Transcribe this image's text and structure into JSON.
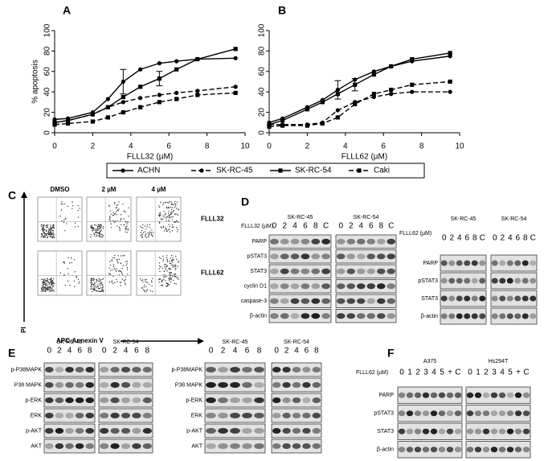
{
  "panel_labels": [
    "A",
    "B",
    "C",
    "D",
    "E",
    "F"
  ],
  "chart_data": [
    {
      "type": "line",
      "ylabel": "% apoptosis",
      "xlabel": "FLLL32 (µM)",
      "x": [
        0,
        0.7,
        2,
        2.8,
        3.6,
        4.5,
        5.5,
        6.4,
        7.5,
        9.5
      ],
      "xlim": [
        0,
        10
      ],
      "xticks": [
        0,
        2,
        4,
        6,
        8,
        10
      ],
      "ylim": [
        0,
        100
      ],
      "yticks": [
        0,
        20,
        40,
        60,
        80,
        100
      ],
      "series": [
        {
          "name": "ACHN",
          "color": "#000000",
          "dash": false,
          "marker": "circle",
          "values": [
            13,
            14,
            20,
            33,
            50,
            62,
            68,
            70,
            72,
            73
          ],
          "errors": [
            null,
            null,
            null,
            null,
            12,
            null,
            null,
            null,
            null,
            null
          ]
        },
        {
          "name": "SK-RC-45",
          "color": "#000000",
          "dash": true,
          "marker": "circle",
          "values": [
            10,
            12,
            18,
            25,
            30,
            34,
            37,
            39,
            41,
            45
          ],
          "errors": [
            null,
            null,
            null,
            null,
            null,
            null,
            null,
            null,
            null,
            null
          ]
        },
        {
          "name": "SK-RC-54",
          "color": "#000000",
          "dash": false,
          "marker": "square",
          "values": [
            10,
            12,
            18,
            25,
            35,
            45,
            53,
            62,
            72,
            82
          ],
          "errors": [
            null,
            null,
            null,
            null,
            null,
            null,
            7,
            null,
            null,
            null
          ]
        },
        {
          "name": "Caki",
          "color": "#000000",
          "dash": true,
          "marker": "square",
          "values": [
            8,
            9,
            11,
            15,
            20,
            25,
            30,
            33,
            37,
            39
          ],
          "errors": [
            null,
            null,
            null,
            null,
            null,
            null,
            null,
            null,
            null,
            null
          ]
        }
      ]
    },
    {
      "type": "line",
      "xlabel": "FLLL62 (µM)",
      "x": [
        0,
        0.7,
        2,
        2.8,
        3.6,
        4.5,
        5.5,
        6.4,
        7.5,
        9.5
      ],
      "xlim": [
        0,
        10
      ],
      "xticks": [
        0,
        2,
        4,
        6,
        8,
        10
      ],
      "ylim": [
        0,
        100
      ],
      "yticks": [
        0,
        20,
        40,
        60,
        80,
        100
      ],
      "series": [
        {
          "name": "ACHN",
          "color": "#000000",
          "dash": false,
          "marker": "circle",
          "values": [
            10,
            14,
            25,
            32,
            42,
            52,
            60,
            65,
            70,
            75
          ],
          "errors": [
            null,
            null,
            null,
            null,
            9,
            null,
            null,
            null,
            null,
            null
          ]
        },
        {
          "name": "SK-RC-45",
          "color": "#000000",
          "dash": true,
          "marker": "circle",
          "values": [
            8,
            8,
            8,
            10,
            22,
            30,
            35,
            38,
            40,
            40
          ],
          "errors": [
            null,
            null,
            null,
            null,
            null,
            null,
            null,
            null,
            null,
            null
          ]
        },
        {
          "name": "SK-RC-54",
          "color": "#000000",
          "dash": false,
          "marker": "square",
          "values": [
            8,
            12,
            23,
            30,
            38,
            47,
            57,
            65,
            72,
            78
          ],
          "errors": [
            null,
            null,
            null,
            null,
            null,
            6,
            null,
            null,
            null,
            null
          ]
        },
        {
          "name": "Caki",
          "color": "#000000",
          "dash": true,
          "marker": "square",
          "values": [
            6,
            7,
            7,
            9,
            15,
            28,
            38,
            42,
            47,
            50
          ],
          "errors": [
            null,
            null,
            null,
            null,
            null,
            null,
            null,
            null,
            null,
            null
          ]
        }
      ]
    }
  ],
  "flow": {
    "columns": [
      "DMSO",
      "2 µM",
      "4 µM"
    ],
    "rows": [
      "FLLL32",
      "FLLL62"
    ],
    "y_label": "PI",
    "x_label": "APC-Annexin V"
  },
  "blots": [
    {
      "header": "FLLL32 (µM)",
      "groups": [
        "SK-RC-45",
        "SK-RC-54"
      ],
      "lanes": [
        "0",
        "2",
        "4",
        "6",
        "8",
        "C"
      ],
      "rows": [
        "PARP",
        "pSTAT3",
        "STAT3",
        "cyclin D1",
        "caspase-3",
        "β-actin"
      ]
    },
    {
      "header": "FLLL62 (µM)",
      "groups": [
        "SK-RC-45",
        "SK-RC-54"
      ],
      "lanes": [
        "0",
        "2",
        "4",
        "6",
        "8",
        "C"
      ],
      "rows": [
        "PARP",
        "pSTAT3",
        "STAT3",
        "β-actin"
      ]
    },
    {
      "groups": [
        "SK-RC-45",
        "SK-RC-54"
      ],
      "lanes": [
        "0",
        "2",
        "4",
        "6",
        "8"
      ],
      "rows": [
        "p-P38MAPK",
        "P38 MAPK",
        "p-ERK",
        "ERK",
        "p-AKT",
        "AKT"
      ]
    },
    {
      "groups": [
        "SK-RC-45",
        "SK-RC-54"
      ],
      "lanes": [
        "0",
        "2",
        "4",
        "6",
        "8"
      ],
      "rows": [
        "p-P38MAPK",
        "P38 MAPK",
        "p-ERK",
        "ERK",
        "p-AKT",
        "AKT"
      ]
    },
    {
      "header": "FLLL62 (µM)",
      "groups": [
        "A375",
        "Hs294T"
      ],
      "lanes": [
        "0",
        "1",
        "2",
        "3",
        "4",
        "5",
        "+",
        "C"
      ],
      "rows": [
        "PARP",
        "pSTAT3",
        "STAT3",
        "β-actin"
      ]
    }
  ]
}
